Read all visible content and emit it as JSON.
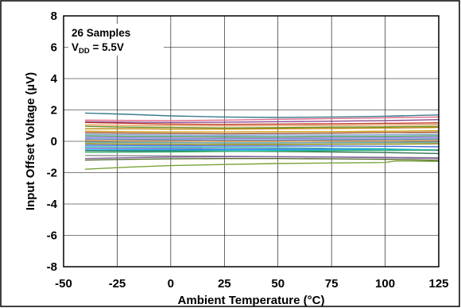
{
  "chart_data": {
    "type": "line",
    "xlabel": "Ambient Temperature (°C)",
    "ylabel": "Input Offset Voltage (µV)",
    "xlim": [
      -50,
      125
    ],
    "ylim": [
      -8,
      8
    ],
    "x_ticks": [
      "-50",
      "-25",
      "0",
      "25",
      "50",
      "75",
      "100",
      "125"
    ],
    "y_ticks": [
      "8",
      "6",
      "4",
      "2",
      "0",
      "-2",
      "-4",
      "-6",
      "-8"
    ],
    "grid": true,
    "annotation": {
      "line1": "26 Samples",
      "vdd_main": "V",
      "vdd_sub": "DD",
      "vdd_value": " = 5.5V"
    },
    "x": [
      -40,
      -20,
      0,
      25,
      50,
      75,
      100,
      105,
      125
    ],
    "series": [
      {
        "color": "#3a7c8c",
        "values": [
          1.8,
          1.72,
          1.62,
          1.55,
          1.52,
          1.55,
          1.6,
          1.62,
          1.68
        ]
      },
      {
        "color": "#e06a8a",
        "values": [
          1.35,
          1.33,
          1.32,
          1.35,
          1.4,
          1.45,
          1.5,
          1.52,
          1.55
        ]
      },
      {
        "color": "#8c4a8c",
        "values": [
          1.25,
          1.22,
          1.2,
          1.22,
          1.25,
          1.28,
          1.32,
          1.33,
          1.38
        ]
      },
      {
        "color": "#c0392b",
        "values": [
          1.2,
          1.15,
          1.1,
          1.08,
          1.1,
          1.12,
          1.15,
          1.15,
          1.18
        ]
      },
      {
        "color": "#e59a5a",
        "values": [
          1.05,
          1.02,
          1.0,
          0.98,
          1.0,
          1.02,
          1.05,
          1.05,
          1.08
        ]
      },
      {
        "color": "#6b8e23",
        "values": [
          0.95,
          0.9,
          0.88,
          0.85,
          0.87,
          0.9,
          0.92,
          0.93,
          0.95
        ]
      },
      {
        "color": "#b8860b",
        "values": [
          0.8,
          0.8,
          0.78,
          0.78,
          0.8,
          0.82,
          0.85,
          0.85,
          0.88
        ]
      },
      {
        "color": "#d4a017",
        "values": [
          0.65,
          0.62,
          0.6,
          0.6,
          0.62,
          0.62,
          0.65,
          0.65,
          0.68
        ]
      },
      {
        "color": "#a0522d",
        "values": [
          0.55,
          0.52,
          0.5,
          0.48,
          0.5,
          0.52,
          0.55,
          0.55,
          0.58
        ]
      },
      {
        "color": "#7b9fd4",
        "values": [
          0.45,
          0.42,
          0.4,
          0.38,
          0.4,
          0.4,
          0.42,
          0.42,
          0.45
        ]
      },
      {
        "color": "#2e8b57",
        "values": [
          0.35,
          0.32,
          0.3,
          0.28,
          0.28,
          0.3,
          0.32,
          0.32,
          0.35
        ]
      },
      {
        "color": "#9370db",
        "values": [
          0.25,
          0.22,
          0.2,
          0.18,
          0.18,
          0.2,
          0.22,
          0.22,
          0.25
        ]
      },
      {
        "color": "#4682b4",
        "values": [
          0.15,
          0.12,
          0.1,
          0.08,
          0.08,
          0.1,
          0.12,
          0.12,
          0.15
        ]
      },
      {
        "color": "#cd853f",
        "values": [
          0.05,
          0.03,
          0.02,
          0.0,
          0.0,
          0.02,
          0.03,
          0.03,
          0.05
        ]
      },
      {
        "color": "#5f9ea0",
        "values": [
          -0.05,
          -0.07,
          -0.08,
          -0.1,
          -0.1,
          -0.08,
          -0.07,
          -0.07,
          -0.05
        ]
      },
      {
        "color": "#808000",
        "values": [
          -0.15,
          -0.17,
          -0.18,
          -0.2,
          -0.2,
          -0.18,
          -0.17,
          -0.17,
          -0.15
        ]
      },
      {
        "color": "#4169e1",
        "values": [
          -0.25,
          -0.27,
          -0.28,
          -0.3,
          -0.3,
          -0.3,
          -0.32,
          -0.32,
          -0.35
        ]
      },
      {
        "color": "#20b2aa",
        "values": [
          -0.35,
          -0.37,
          -0.38,
          -0.4,
          -0.42,
          -0.45,
          -0.48,
          -0.5,
          -0.55
        ]
      },
      {
        "color": "#6a5acd",
        "values": [
          -0.45,
          -0.47,
          -0.48,
          -0.5,
          -0.5,
          -0.52,
          -0.55,
          -0.55,
          -0.58
        ]
      },
      {
        "color": "#00bfff",
        "values": [
          -0.55,
          -0.55,
          -0.55,
          -0.55,
          -0.55,
          -0.55,
          -0.55,
          -0.55,
          -0.55
        ]
      },
      {
        "color": "#2f6f4f",
        "values": [
          -0.6,
          -0.62,
          -0.62,
          -0.63,
          -0.65,
          -0.68,
          -0.72,
          -0.73,
          -0.78
        ]
      },
      {
        "color": "#3cb371",
        "values": [
          -0.7,
          -0.7,
          -0.68,
          -0.65,
          -0.62,
          -0.6,
          -0.58,
          -0.58,
          -0.55
        ]
      },
      {
        "color": "#8b8b8b",
        "values": [
          -0.9,
          -0.92,
          -0.93,
          -0.95,
          -0.98,
          -1.0,
          -1.02,
          -1.03,
          -1.05
        ]
      },
      {
        "color": "#7f5f9f",
        "values": [
          -1.1,
          -1.05,
          -1.0,
          -0.98,
          -0.98,
          -1.0,
          -1.05,
          -1.05,
          -1.1
        ]
      },
      {
        "color": "#556b2f",
        "values": [
          -1.2,
          -1.15,
          -1.12,
          -1.1,
          -1.1,
          -1.12,
          -1.15,
          -1.15,
          -1.22
        ]
      },
      {
        "color": "#7aa33a",
        "values": [
          -1.78,
          -1.65,
          -1.55,
          -1.48,
          -1.42,
          -1.38,
          -1.35,
          -1.25,
          -1.28
        ]
      }
    ]
  }
}
